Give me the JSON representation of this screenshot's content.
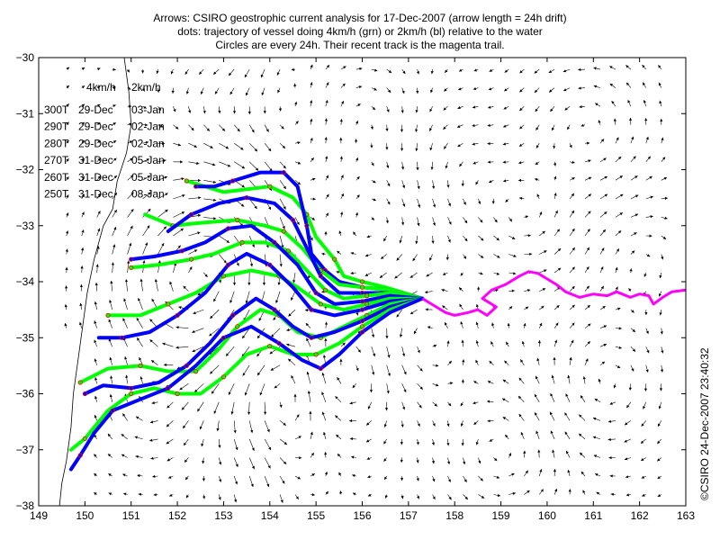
{
  "title": {
    "line1": "Arrows: CSIRO geostrophic current analysis for 17-Dec-2007 (arrow length = 24h drift)",
    "line2": "dots: trajectory of vessel doing 4km/h (grn) or 2km/h (bl) relative to the water",
    "line3": "Circles are every 24h. Their recent track is the magenta trail."
  },
  "credit": "©CSIRO 24-Dec-2007 23:40:32",
  "colors": {
    "fast_track": "#00ff00",
    "slow_track": "#0000ff",
    "recent_trail": "#ff00ff",
    "arrows": "#000000",
    "coast": "#000000",
    "day_circles": "#ff0000"
  },
  "legend": {
    "headers": [
      "4km/h",
      "2km/h"
    ],
    "rows": [
      {
        "heading": "300T",
        "fast": "29-Dec",
        "slow": "03-Jan"
      },
      {
        "heading": "290T",
        "fast": "29-Dec",
        "slow": "02-Jan"
      },
      {
        "heading": "280T",
        "fast": "29-Dec",
        "slow": "02-Jan"
      },
      {
        "heading": "270T",
        "fast": "31-Dec",
        "slow": "05-Jan"
      },
      {
        "heading": "260T",
        "fast": "31-Dec",
        "slow": "05-Jan"
      },
      {
        "heading": "250T",
        "fast": "31-Dec",
        "slow": "08-Jan"
      }
    ]
  },
  "chart_data": {
    "type": "scatter",
    "title": "Arrows: CSIRO geostrophic current analysis for 17-Dec-2007 (arrow length = 24h drift)",
    "xlabel": "",
    "ylabel": "",
    "xlim": [
      149,
      163
    ],
    "ylim": [
      -38,
      -30
    ],
    "xticks": [
      149,
      150,
      151,
      152,
      153,
      154,
      155,
      156,
      157,
      158,
      159,
      160,
      161,
      162,
      163
    ],
    "yticks": [
      -38,
      -37,
      -36,
      -35,
      -34,
      -33,
      -32,
      -31,
      -30
    ],
    "xtick_labels": [
      "149",
      "150",
      "151",
      "152",
      "153",
      "154",
      "155",
      "156",
      "157",
      "158",
      "159",
      "160",
      "161",
      "162",
      "163"
    ],
    "ytick_labels": [
      "−38",
      "−37",
      "−36",
      "−35",
      "−34",
      "−33",
      "−32",
      "−31",
      "−30"
    ],
    "start_point": [
      157.3,
      -34.3
    ],
    "recent_trail": {
      "name": "recent track",
      "lon": [
        163.0,
        162.7,
        162.5,
        162.3,
        162.2,
        162.0,
        161.8,
        161.5,
        161.3,
        161.0,
        160.7,
        160.4,
        160.2,
        160.0,
        159.8,
        159.6,
        159.4,
        159.1,
        158.8,
        158.6,
        158.9,
        158.7,
        158.5,
        158.3,
        158.0,
        157.8,
        157.6,
        157.3
      ],
      "lat": [
        -34.15,
        -34.18,
        -34.28,
        -34.4,
        -34.25,
        -34.22,
        -34.28,
        -34.18,
        -34.25,
        -34.22,
        -34.28,
        -34.18,
        -34.05,
        -33.95,
        -33.85,
        -33.82,
        -33.9,
        -34.05,
        -34.15,
        -34.3,
        -34.45,
        -34.6,
        -34.5,
        -34.55,
        -34.6,
        -34.55,
        -34.45,
        -34.3
      ]
    },
    "series": [
      {
        "name": "300T 4km/h",
        "speed": "4km/h",
        "lon": [
          157.3,
          156.5,
          156.0,
          155.6,
          155.4,
          155.0,
          154.8,
          154.5,
          154.0,
          153.0,
          152.2
        ],
        "lat": [
          -34.3,
          -34.1,
          -34.0,
          -33.9,
          -33.6,
          -33.2,
          -32.8,
          -32.5,
          -32.3,
          -32.4,
          -32.2
        ]
      },
      {
        "name": "300T 2km/h",
        "speed": "2km/h",
        "lon": [
          157.3,
          156.6,
          156.0,
          155.5,
          155.2,
          154.9,
          154.8,
          154.6,
          154.3,
          153.8,
          153.2,
          152.8,
          152.4
        ],
        "lat": [
          -34.3,
          -34.15,
          -34.1,
          -34.0,
          -33.8,
          -33.5,
          -33.0,
          -32.3,
          -32.05,
          -32.05,
          -32.2,
          -32.3,
          -32.3
        ]
      },
      {
        "name": "290T 4km/h",
        "speed": "4km/h",
        "lon": [
          157.3,
          156.6,
          156.0,
          155.5,
          155.1,
          154.7,
          154.3,
          153.9,
          153.3,
          152.5,
          151.9,
          151.3
        ],
        "lat": [
          -34.3,
          -34.15,
          -34.1,
          -34.05,
          -33.8,
          -33.4,
          -33.1,
          -33.0,
          -32.9,
          -32.95,
          -33.0,
          -32.8
        ]
      },
      {
        "name": "290T 2km/h",
        "speed": "2km/h",
        "lon": [
          157.3,
          156.6,
          156.0,
          155.5,
          155.1,
          154.8,
          154.5,
          154.1,
          153.5,
          152.9,
          152.3,
          151.8
        ],
        "lat": [
          -34.3,
          -34.2,
          -34.2,
          -34.2,
          -33.9,
          -33.4,
          -32.9,
          -32.6,
          -32.5,
          -32.6,
          -32.8,
          -33.1
        ]
      },
      {
        "name": "280T 4km/h",
        "speed": "4km/h",
        "lon": [
          157.3,
          156.6,
          156.1,
          155.6,
          155.2,
          154.8,
          154.4,
          153.9,
          153.4,
          152.8,
          152.3,
          151.6,
          151.0
        ],
        "lat": [
          -34.3,
          -34.2,
          -34.25,
          -34.3,
          -34.15,
          -33.8,
          -33.45,
          -33.3,
          -33.3,
          -33.5,
          -33.6,
          -33.7,
          -33.75
        ]
      },
      {
        "name": "280T 2km/h",
        "speed": "2km/h",
        "lon": [
          157.3,
          156.6,
          156.0,
          155.4,
          155.0,
          154.6,
          154.1,
          153.6,
          153.1,
          152.6,
          152.1,
          151.5,
          151.0
        ],
        "lat": [
          -34.3,
          -34.25,
          -34.35,
          -34.4,
          -34.2,
          -33.7,
          -33.3,
          -33.0,
          -33.05,
          -33.3,
          -33.45,
          -33.55,
          -33.6
        ]
      },
      {
        "name": "270T 4km/h",
        "speed": "4km/h",
        "lon": [
          157.3,
          156.6,
          156.1,
          155.6,
          155.1,
          154.6,
          154.2,
          153.6,
          153.0,
          152.4,
          151.8,
          151.2,
          150.5
        ],
        "lat": [
          -34.3,
          -34.3,
          -34.4,
          -34.5,
          -34.4,
          -34.1,
          -33.9,
          -33.8,
          -33.9,
          -34.2,
          -34.4,
          -34.6,
          -34.6
        ]
      },
      {
        "name": "270T 2km/h",
        "speed": "2km/h",
        "lon": [
          157.3,
          156.6,
          156.0,
          155.4,
          154.9,
          154.5,
          154.0,
          153.5,
          153.1,
          152.6,
          152.0,
          151.4,
          150.8,
          150.3
        ],
        "lat": [
          -34.3,
          -34.35,
          -34.5,
          -34.6,
          -34.5,
          -34.1,
          -33.7,
          -33.5,
          -33.7,
          -34.2,
          -34.6,
          -34.9,
          -35.0,
          -35.0
        ]
      },
      {
        "name": "260T 4km/h",
        "speed": "4km/h",
        "lon": [
          157.3,
          156.6,
          156.1,
          155.6,
          155.1,
          154.6,
          154.2,
          153.8,
          153.3,
          152.9,
          152.4,
          151.8,
          151.2,
          150.5,
          149.9
        ],
        "lat": [
          -34.3,
          -34.4,
          -34.6,
          -34.8,
          -35.0,
          -34.9,
          -34.6,
          -34.5,
          -34.8,
          -35.2,
          -35.6,
          -35.6,
          -35.5,
          -35.55,
          -35.8
        ]
      },
      {
        "name": "260T 2km/h",
        "speed": "2km/h",
        "lon": [
          157.3,
          156.6,
          156.0,
          155.4,
          154.9,
          154.5,
          154.1,
          153.7,
          153.2,
          152.7,
          152.2,
          151.6,
          151.0,
          150.4,
          150.0
        ],
        "lat": [
          -34.3,
          -34.45,
          -34.7,
          -34.9,
          -35.0,
          -34.8,
          -34.5,
          -34.3,
          -34.6,
          -35.1,
          -35.5,
          -35.8,
          -35.9,
          -35.85,
          -36.0
        ]
      },
      {
        "name": "250T 4km/h",
        "speed": "4km/h",
        "lon": [
          157.3,
          156.6,
          156.0,
          155.5,
          155.0,
          154.5,
          154.0,
          153.5,
          153.0,
          152.5,
          152.0,
          151.5,
          151.0,
          150.5,
          150.0,
          149.7
        ],
        "lat": [
          -34.3,
          -34.5,
          -34.8,
          -35.1,
          -35.3,
          -35.3,
          -35.15,
          -35.3,
          -35.7,
          -36.0,
          -36.0,
          -35.9,
          -36.0,
          -36.3,
          -36.8,
          -37.0
        ]
      },
      {
        "name": "250T 2km/h",
        "speed": "2km/h",
        "lon": [
          157.3,
          156.6,
          156.0,
          155.5,
          155.1,
          154.7,
          154.2,
          153.6,
          153.0,
          152.4,
          151.8,
          151.2,
          150.6,
          150.2,
          149.9,
          149.7
        ],
        "lat": [
          -34.3,
          -34.55,
          -34.9,
          -35.3,
          -35.55,
          -35.4,
          -35.1,
          -34.8,
          -35.0,
          -35.5,
          -35.9,
          -36.1,
          -36.3,
          -36.7,
          -37.1,
          -37.35
        ]
      }
    ]
  }
}
